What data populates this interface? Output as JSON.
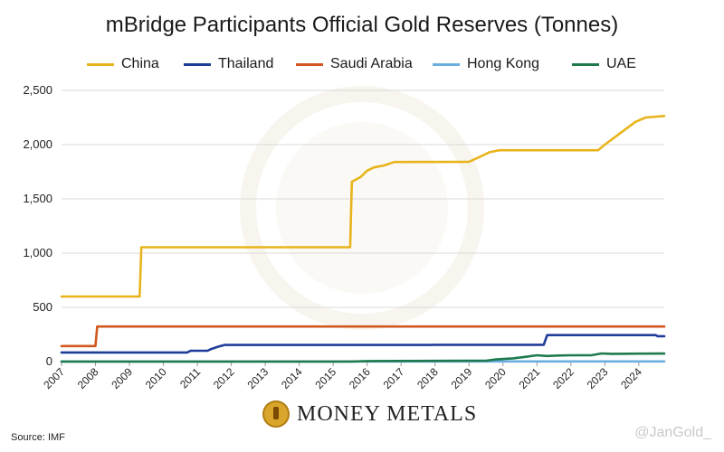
{
  "chart_data": {
    "type": "line",
    "title": "mBridge Participants Official Gold Reserves (Tonnes)",
    "ylim": [
      0,
      2500
    ],
    "y_ticks": [
      "2,500",
      "2,000",
      "1,500",
      "1,000",
      "500",
      "0"
    ],
    "y_tick_values": [
      2500,
      2000,
      1500,
      1000,
      500,
      0
    ],
    "xlim": [
      2007,
      2024.75
    ],
    "x_ticks": [
      "2007",
      "2008",
      "2009",
      "2010",
      "2011",
      "2012",
      "2013",
      "2014",
      "2015",
      "2016",
      "2017",
      "2018",
      "2019",
      "2020",
      "2021",
      "2022",
      "2023",
      "2024"
    ],
    "x_tick_values": [
      2007,
      2008,
      2009,
      2010,
      2011,
      2012,
      2013,
      2014,
      2015,
      2016,
      2017,
      2018,
      2019,
      2020,
      2021,
      2022,
      2023,
      2024
    ],
    "grid": true,
    "legend_position": "top",
    "series": [
      {
        "name": "China",
        "color": "#E8B41C",
        "points": [
          [
            2007,
            600
          ],
          [
            2009.3,
            600
          ],
          [
            2009.35,
            1054
          ],
          [
            2015.5,
            1054
          ],
          [
            2015.55,
            1658
          ],
          [
            2015.8,
            1700
          ],
          [
            2016.0,
            1760
          ],
          [
            2016.2,
            1790
          ],
          [
            2016.5,
            1808
          ],
          [
            2016.8,
            1840
          ],
          [
            2019.0,
            1842
          ],
          [
            2019.3,
            1885
          ],
          [
            2019.6,
            1930
          ],
          [
            2019.9,
            1948
          ],
          [
            2022.8,
            1948
          ],
          [
            2023.0,
            2000
          ],
          [
            2023.3,
            2070
          ],
          [
            2023.6,
            2140
          ],
          [
            2023.9,
            2210
          ],
          [
            2024.2,
            2250
          ],
          [
            2024.75,
            2264
          ]
        ]
      },
      {
        "name": "Thailand",
        "color": "#1F3C99",
        "points": [
          [
            2007,
            84
          ],
          [
            2010.7,
            84
          ],
          [
            2010.8,
            100
          ],
          [
            2011.3,
            100
          ],
          [
            2011.4,
            115
          ],
          [
            2011.6,
            137
          ],
          [
            2011.8,
            153
          ],
          [
            2017.9,
            153
          ],
          [
            2018,
            155
          ],
          [
            2021.2,
            155
          ],
          [
            2021.3,
            244
          ],
          [
            2024.5,
            244
          ],
          [
            2024.55,
            234
          ],
          [
            2024.75,
            234
          ]
        ]
      },
      {
        "name": "Saudi Arabia",
        "color": "#D2571E",
        "points": [
          [
            2007,
            143
          ],
          [
            2008.0,
            143
          ],
          [
            2008.05,
            323
          ],
          [
            2024.75,
            323
          ]
        ]
      },
      {
        "name": "Hong Kong",
        "color": "#6AAEE0",
        "points": [
          [
            2007,
            2
          ],
          [
            2024.75,
            2
          ]
        ]
      },
      {
        "name": "UAE",
        "color": "#1E7A4D",
        "points": [
          [
            2007,
            0
          ],
          [
            2015.5,
            0
          ],
          [
            2016.0,
            5
          ],
          [
            2019.5,
            8
          ],
          [
            2019.8,
            20
          ],
          [
            2020.3,
            30
          ],
          [
            2020.7,
            45
          ],
          [
            2021.0,
            58
          ],
          [
            2021.3,
            52
          ],
          [
            2021.6,
            56
          ],
          [
            2022.0,
            58
          ],
          [
            2022.6,
            58
          ],
          [
            2022.9,
            75
          ],
          [
            2023.2,
            72
          ],
          [
            2024.0,
            73
          ],
          [
            2024.75,
            74
          ]
        ]
      }
    ]
  },
  "footer": {
    "source": "Source: IMF",
    "brand": "MONEY METALS",
    "handle": "@JanGold_"
  }
}
